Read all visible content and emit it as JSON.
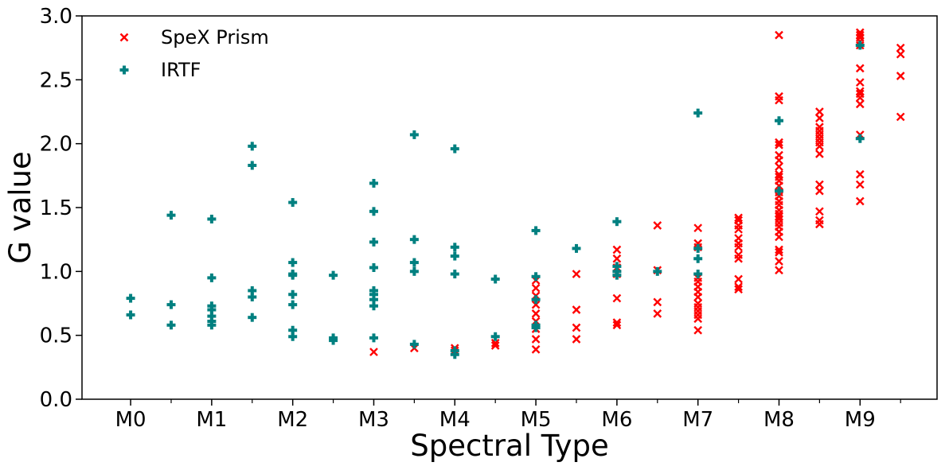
{
  "chart_data": {
    "type": "scatter",
    "title": "",
    "xlabel": "Spectral Type",
    "ylabel": "G value",
    "xlim": [
      -0.6,
      9.95
    ],
    "ylim": [
      0,
      3
    ],
    "xticks": [
      {
        "value": 0,
        "label": "M0"
      },
      {
        "value": 1,
        "label": "M1"
      },
      {
        "value": 2,
        "label": "M2"
      },
      {
        "value": 3,
        "label": "M3"
      },
      {
        "value": 4,
        "label": "M4"
      },
      {
        "value": 5,
        "label": "M5"
      },
      {
        "value": 6,
        "label": "M6"
      },
      {
        "value": 7,
        "label": "M7"
      },
      {
        "value": 8,
        "label": "M8"
      },
      {
        "value": 9,
        "label": "M9"
      }
    ],
    "xminor": [
      0.5,
      1.5,
      2.5,
      3.5,
      4.5,
      5.5,
      6.5,
      7.5,
      8.5,
      9.5
    ],
    "yticks": [
      {
        "value": 0.0,
        "label": "0.0"
      },
      {
        "value": 0.5,
        "label": "0.5"
      },
      {
        "value": 1.0,
        "label": "1.0"
      },
      {
        "value": 1.5,
        "label": "1.5"
      },
      {
        "value": 2.0,
        "label": "2.0"
      },
      {
        "value": 2.5,
        "label": "2.5"
      },
      {
        "value": 3.0,
        "label": "3.0"
      }
    ],
    "legend_position": "top-left",
    "series": [
      {
        "name": "SpeX Prism",
        "marker": "x",
        "color": "#ff0000",
        "points": [
          [
            3,
            0.37
          ],
          [
            3.5,
            0.4
          ],
          [
            4,
            0.4
          ],
          [
            4,
            0.38
          ],
          [
            4.5,
            0.42
          ],
          [
            4.5,
            0.44
          ],
          [
            5,
            0.39
          ],
          [
            5,
            0.47
          ],
          [
            5,
            0.55
          ],
          [
            5,
            0.61
          ],
          [
            5,
            0.67
          ],
          [
            5,
            0.74
          ],
          [
            5,
            0.81
          ],
          [
            5,
            0.87
          ],
          [
            5,
            0.93
          ],
          [
            5.5,
            0.47
          ],
          [
            5.5,
            0.56
          ],
          [
            5.5,
            0.7
          ],
          [
            5.5,
            0.98
          ],
          [
            6,
            0.58
          ],
          [
            6,
            0.6
          ],
          [
            6,
            0.79
          ],
          [
            6,
            0.98
          ],
          [
            6,
            1.03
          ],
          [
            6,
            1.1
          ],
          [
            6,
            1.17
          ],
          [
            6.5,
            0.67
          ],
          [
            6.5,
            0.76
          ],
          [
            6.5,
            1.01
          ],
          [
            6.5,
            1.36
          ],
          [
            7,
            0.54
          ],
          [
            7,
            0.63
          ],
          [
            7,
            0.66
          ],
          [
            7,
            0.69
          ],
          [
            7,
            0.72
          ],
          [
            7,
            0.75
          ],
          [
            7,
            0.8
          ],
          [
            7,
            0.84
          ],
          [
            7,
            0.88
          ],
          [
            7,
            0.92
          ],
          [
            7,
            0.95
          ],
          [
            7,
            1.19
          ],
          [
            7,
            1.22
          ],
          [
            7,
            1.34
          ],
          [
            7.5,
            0.86
          ],
          [
            7.5,
            0.88
          ],
          [
            7.5,
            0.94
          ],
          [
            7.5,
            1.1
          ],
          [
            7.5,
            1.13
          ],
          [
            7.5,
            1.19
          ],
          [
            7.5,
            1.22
          ],
          [
            7.5,
            1.26
          ],
          [
            7.5,
            1.33
          ],
          [
            7.5,
            1.36
          ],
          [
            7.5,
            1.4
          ],
          [
            7.5,
            1.42
          ],
          [
            8,
            1.01
          ],
          [
            8,
            1.08
          ],
          [
            8,
            1.15
          ],
          [
            8,
            1.17
          ],
          [
            8,
            1.27
          ],
          [
            8,
            1.31
          ],
          [
            8,
            1.35
          ],
          [
            8,
            1.38
          ],
          [
            8,
            1.41
          ],
          [
            8,
            1.43
          ],
          [
            8,
            1.45
          ],
          [
            8,
            1.48
          ],
          [
            8,
            1.52
          ],
          [
            8,
            1.55
          ],
          [
            8,
            1.59
          ],
          [
            8,
            1.62
          ],
          [
            8,
            1.67
          ],
          [
            8,
            1.71
          ],
          [
            8,
            1.74
          ],
          [
            8,
            1.76
          ],
          [
            8,
            1.82
          ],
          [
            8,
            1.87
          ],
          [
            8,
            1.91
          ],
          [
            8,
            1.99
          ],
          [
            8,
            2.01
          ],
          [
            8,
            2.34
          ],
          [
            8,
            2.37
          ],
          [
            8,
            2.85
          ],
          [
            8.5,
            1.37
          ],
          [
            8.5,
            1.4
          ],
          [
            8.5,
            1.47
          ],
          [
            8.5,
            1.63
          ],
          [
            8.5,
            1.68
          ],
          [
            8.5,
            1.92
          ],
          [
            8.5,
            1.98
          ],
          [
            8.5,
            2.01
          ],
          [
            8.5,
            2.04
          ],
          [
            8.5,
            2.07
          ],
          [
            8.5,
            2.1
          ],
          [
            8.5,
            2.13
          ],
          [
            8.5,
            2.2
          ],
          [
            8.5,
            2.25
          ],
          [
            9,
            1.55
          ],
          [
            9,
            1.68
          ],
          [
            9,
            1.76
          ],
          [
            9,
            2.07
          ],
          [
            9,
            2.31
          ],
          [
            9,
            2.36
          ],
          [
            9,
            2.39
          ],
          [
            9,
            2.41
          ],
          [
            9,
            2.48
          ],
          [
            9,
            2.59
          ],
          [
            9,
            2.77
          ],
          [
            9,
            2.8
          ],
          [
            9,
            2.83
          ],
          [
            9,
            2.85
          ],
          [
            9,
            2.87
          ],
          [
            9.5,
            2.21
          ],
          [
            9.5,
            2.53
          ],
          [
            9.5,
            2.7
          ],
          [
            9.5,
            2.75
          ]
        ]
      },
      {
        "name": "IRTF",
        "marker": "plus",
        "color": "#008080",
        "points": [
          [
            0,
            0.66
          ],
          [
            0,
            0.79
          ],
          [
            0.5,
            0.58
          ],
          [
            0.5,
            0.74
          ],
          [
            0.5,
            1.44
          ],
          [
            1,
            0.58
          ],
          [
            1,
            0.61
          ],
          [
            1,
            0.65
          ],
          [
            1,
            0.7
          ],
          [
            1,
            0.73
          ],
          [
            1,
            0.95
          ],
          [
            1,
            1.41
          ],
          [
            1.5,
            0.64
          ],
          [
            1.5,
            0.8
          ],
          [
            1.5,
            0.85
          ],
          [
            1.5,
            1.83
          ],
          [
            1.5,
            1.98
          ],
          [
            2,
            0.49
          ],
          [
            2,
            0.54
          ],
          [
            2,
            0.74
          ],
          [
            2,
            0.82
          ],
          [
            2,
            0.97
          ],
          [
            2,
            0.98
          ],
          [
            2,
            1.07
          ],
          [
            2,
            1.54
          ],
          [
            2.5,
            0.46
          ],
          [
            2.5,
            0.48
          ],
          [
            2.5,
            0.97
          ],
          [
            3,
            0.48
          ],
          [
            3,
            0.73
          ],
          [
            3,
            0.78
          ],
          [
            3,
            0.82
          ],
          [
            3,
            0.85
          ],
          [
            3,
            1.03
          ],
          [
            3,
            1.23
          ],
          [
            3,
            1.47
          ],
          [
            3,
            1.69
          ],
          [
            3.5,
            0.43
          ],
          [
            3.5,
            1.0
          ],
          [
            3.5,
            1.07
          ],
          [
            3.5,
            1.25
          ],
          [
            3.5,
            2.07
          ],
          [
            4,
            0.35
          ],
          [
            4,
            0.38
          ],
          [
            4,
            0.98
          ],
          [
            4,
            1.12
          ],
          [
            4,
            1.19
          ],
          [
            4,
            1.96
          ],
          [
            4.5,
            0.49
          ],
          [
            4.5,
            0.94
          ],
          [
            5,
            0.56
          ],
          [
            5,
            0.58
          ],
          [
            5,
            0.78
          ],
          [
            5,
            0.96
          ],
          [
            5,
            1.32
          ],
          [
            5.5,
            1.18
          ],
          [
            6,
            0.97
          ],
          [
            6,
            1.0
          ],
          [
            6,
            1.04
          ],
          [
            6,
            1.39
          ],
          [
            6.5,
            1.0
          ],
          [
            7,
            0.98
          ],
          [
            7,
            1.1
          ],
          [
            7,
            1.18
          ],
          [
            7,
            2.24
          ],
          [
            8,
            1.63
          ],
          [
            8,
            2.18
          ],
          [
            9,
            2.04
          ],
          [
            9,
            2.77
          ]
        ]
      }
    ]
  }
}
